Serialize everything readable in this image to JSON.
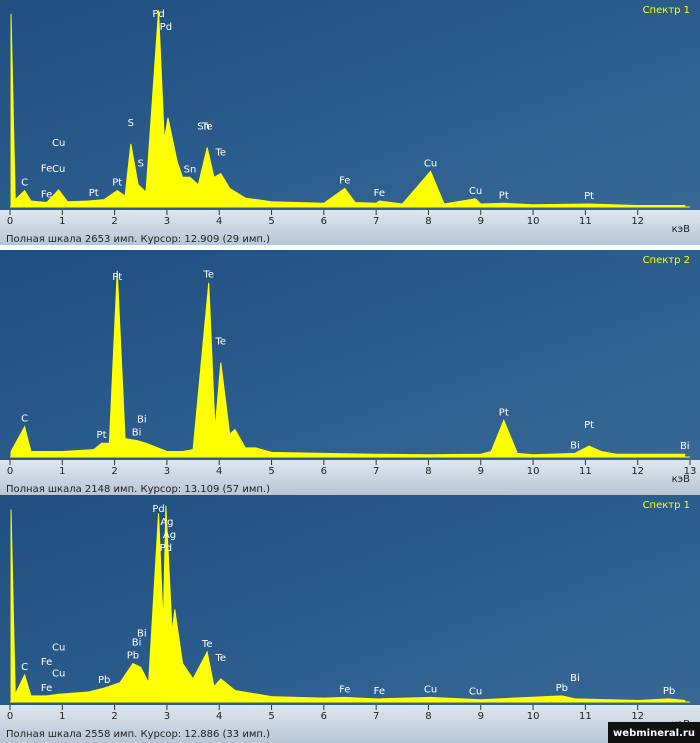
{
  "chart_data": [
    {
      "type": "area",
      "title": "Спектр 1",
      "x_unit": "кэВ",
      "status": "Полная шкала 2653 имп. Курсор: 12.909 (29 имп.)",
      "color": "#ffff00",
      "xlim": [
        0,
        13
      ],
      "ylim": [
        0,
        2653
      ],
      "xticks": [
        0,
        1,
        2,
        3,
        4,
        5,
        6,
        7,
        8,
        9,
        10,
        11,
        12
      ],
      "x": [
        0.02,
        0.1,
        0.28,
        0.4,
        0.7,
        0.93,
        1.1,
        1.5,
        1.8,
        2.05,
        2.2,
        2.31,
        2.45,
        2.6,
        2.84,
        2.95,
        3.02,
        3.2,
        3.3,
        3.44,
        3.6,
        3.77,
        3.9,
        4.03,
        4.2,
        4.5,
        5,
        6,
        6.4,
        6.6,
        7,
        7.06,
        7.5,
        8.04,
        8.3,
        8.9,
        9.0,
        9.44,
        10,
        11.07,
        12,
        12.9
      ],
      "values": [
        2600,
        100,
        220,
        80,
        60,
        230,
        70,
        80,
        100,
        220,
        150,
        850,
        300,
        200,
        2650,
        900,
        1200,
        600,
        400,
        400,
        300,
        800,
        400,
        450,
        250,
        120,
        70,
        50,
        250,
        60,
        50,
        80,
        40,
        480,
        40,
        110,
        40,
        50,
        30,
        40,
        20,
        20
      ],
      "annotations": [
        {
          "text": "C",
          "x": 0.28
        },
        {
          "text": "Fe",
          "x": 0.7
        },
        {
          "text": "Cu",
          "x": 0.93
        },
        {
          "text": "Fe",
          "x": 0.7
        },
        {
          "text": "Cu",
          "x": 0.93
        },
        {
          "text": "Pt",
          "x": 1.6
        },
        {
          "text": "Pt",
          "x": 2.05
        },
        {
          "text": "S",
          "x": 2.31
        },
        {
          "text": "S",
          "x": 2.5
        },
        {
          "text": "Pd",
          "x": 2.84
        },
        {
          "text": "Pd",
          "x": 2.98
        },
        {
          "text": "Sn",
          "x": 3.44
        },
        {
          "text": "Sn",
          "x": 3.7
        },
        {
          "text": "Te",
          "x": 3.77
        },
        {
          "text": "Te",
          "x": 4.03
        },
        {
          "text": "Fe",
          "x": 6.4
        },
        {
          "text": "Fe",
          "x": 7.06
        },
        {
          "text": "Cu",
          "x": 8.04
        },
        {
          "text": "Cu",
          "x": 8.9
        },
        {
          "text": "Pt",
          "x": 9.44
        },
        {
          "text": "Pt",
          "x": 11.07
        }
      ]
    },
    {
      "type": "area",
      "title": "Спектр 2",
      "x_unit": "кэВ",
      "status": "Полная шкала 2148 имп. Курсор: 13.109 (57 имп.)",
      "color": "#ffff00",
      "xlim": [
        0,
        13
      ],
      "ylim": [
        0,
        2148
      ],
      "xticks": [
        0,
        1,
        2,
        3,
        4,
        5,
        6,
        7,
        8,
        9,
        10,
        11,
        12,
        13
      ],
      "x": [
        0.02,
        0.28,
        0.4,
        1,
        1.6,
        1.75,
        1.9,
        2.05,
        2.2,
        2.42,
        2.6,
        3,
        3.3,
        3.5,
        3.8,
        3.92,
        4.03,
        4.2,
        4.3,
        4.5,
        4.7,
        5,
        6,
        7,
        8,
        9,
        9.2,
        9.44,
        9.7,
        10,
        10.8,
        11.07,
        11.3,
        11.6,
        12.9
      ],
      "values": [
        60,
        330,
        60,
        60,
        80,
        150,
        150,
        2030,
        200,
        180,
        150,
        60,
        60,
        80,
        1900,
        300,
        1030,
        250,
        300,
        100,
        100,
        50,
        40,
        30,
        25,
        30,
        60,
        400,
        40,
        25,
        40,
        120,
        60,
        30,
        30
      ],
      "annotations": [
        {
          "text": "C",
          "x": 0.28
        },
        {
          "text": "Pt",
          "x": 1.75
        },
        {
          "text": "Pt",
          "x": 2.05
        },
        {
          "text": "Bi",
          "x": 2.42
        },
        {
          "text": "Bi",
          "x": 2.52
        },
        {
          "text": "Te",
          "x": 3.8
        },
        {
          "text": "Te",
          "x": 4.03
        },
        {
          "text": "Pt",
          "x": 9.44
        },
        {
          "text": "Bi",
          "x": 10.8
        },
        {
          "text": "Pt",
          "x": 11.07
        },
        {
          "text": "Bi",
          "x": 12.9
        }
      ]
    },
    {
      "type": "area",
      "title": "Спектр 1",
      "x_unit": "кэВ",
      "status": "Полная шкала 2558 имп. Курсор: 12.886 (33 имп.)",
      "color": "#ffff00",
      "xlim": [
        0,
        13
      ],
      "ylim": [
        0,
        2558
      ],
      "xticks": [
        0,
        1,
        2,
        3,
        4,
        5,
        6,
        7,
        8,
        9,
        10,
        11,
        12
      ],
      "x": [
        0.02,
        0.1,
        0.28,
        0.4,
        0.7,
        0.93,
        1.5,
        1.8,
        2.1,
        2.35,
        2.5,
        2.65,
        2.84,
        2.93,
        2.98,
        3.1,
        3.15,
        3.3,
        3.5,
        3.77,
        3.9,
        4.03,
        4.3,
        5,
        6,
        6.4,
        7,
        8.04,
        9,
        10.55,
        10.8,
        12,
        12.6,
        12.9
      ],
      "values": [
        2500,
        100,
        350,
        80,
        80,
        100,
        130,
        180,
        250,
        500,
        450,
        250,
        2450,
        1000,
        2550,
        900,
        1200,
        500,
        300,
        650,
        200,
        300,
        150,
        70,
        50,
        60,
        40,
        60,
        30,
        80,
        40,
        20,
        40,
        20
      ],
      "annotations": [
        {
          "text": "C",
          "x": 0.28
        },
        {
          "text": "Fe",
          "x": 0.7
        },
        {
          "text": "Cu",
          "x": 0.93
        },
        {
          "text": "Fe",
          "x": 0.7
        },
        {
          "text": "Cu",
          "x": 0.93
        },
        {
          "text": "Pb",
          "x": 1.8
        },
        {
          "text": "Pb",
          "x": 2.35
        },
        {
          "text": "Bi",
          "x": 2.42
        },
        {
          "text": "Bi",
          "x": 2.52
        },
        {
          "text": "Pd",
          "x": 2.84
        },
        {
          "text": "Ag",
          "x": 3.0
        },
        {
          "text": "Ag",
          "x": 3.05
        },
        {
          "text": "Pd",
          "x": 2.98
        },
        {
          "text": "Te",
          "x": 3.77
        },
        {
          "text": "Te",
          "x": 4.03
        },
        {
          "text": "Fe",
          "x": 6.4
        },
        {
          "text": "Fe",
          "x": 7.06
        },
        {
          "text": "Cu",
          "x": 8.04
        },
        {
          "text": "Cu",
          "x": 8.9
        },
        {
          "text": "Pb",
          "x": 10.55
        },
        {
          "text": "Bi",
          "x": 10.8
        },
        {
          "text": "Pb",
          "x": 12.6
        }
      ]
    }
  ],
  "watermark": "webmineral.ru"
}
